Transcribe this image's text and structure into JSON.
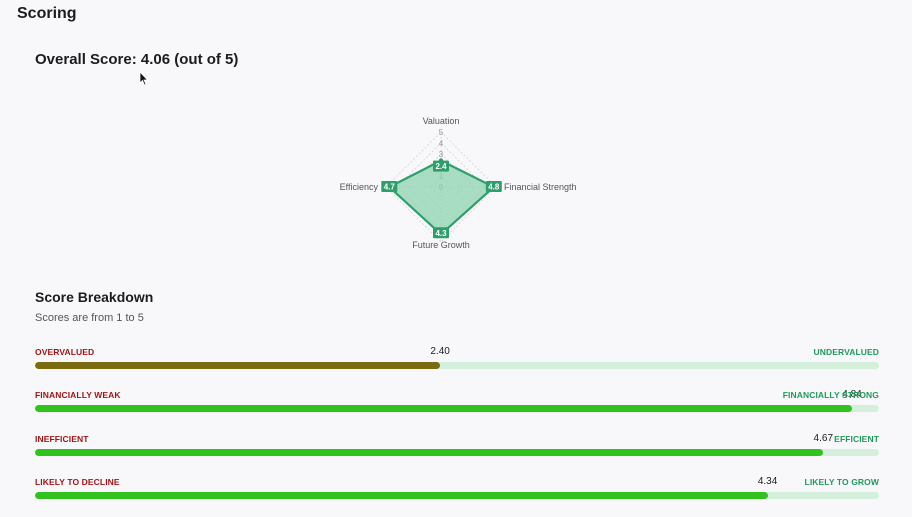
{
  "page": {
    "title": "Scoring"
  },
  "overall": {
    "text": "Overall Score: 4.06 (out of 5)"
  },
  "radar": {
    "ticks": [
      "5",
      "4",
      "3",
      "2",
      "1",
      "0"
    ],
    "axes": [
      {
        "name": "Valuation",
        "value": 2.4,
        "label": "2.4"
      },
      {
        "name": "Financial Strength",
        "value": 4.8,
        "label": "4.8"
      },
      {
        "name": "Future Growth",
        "value": 4.3,
        "label": "4.3"
      },
      {
        "name": "Efficiency",
        "value": 4.7,
        "label": "4.7"
      }
    ],
    "color": "#2e9e6b",
    "fill_color": "#8fd4b0"
  },
  "breakdown": {
    "title": "Score Breakdown",
    "subtitle": "Scores are from 1 to 5",
    "rows": [
      {
        "left": "OVERVALUED",
        "right": "UNDERVALUED",
        "value": "2.40",
        "fraction": 0.48,
        "color": "#7a6a10"
      },
      {
        "left": "FINANCIALLY WEAK",
        "right": "FINANCIALLY STRONG",
        "value": "4.84",
        "fraction": 0.968,
        "color": "#31c21e"
      },
      {
        "left": "INEFFICIENT",
        "right": "EFFICIENT",
        "value": "4.67",
        "fraction": 0.934,
        "color": "#31c21e"
      },
      {
        "left": "LIKELY TO DECLINE",
        "right": "LIKELY TO GROW",
        "value": "4.34",
        "fraction": 0.868,
        "color": "#31c21e"
      }
    ]
  }
}
